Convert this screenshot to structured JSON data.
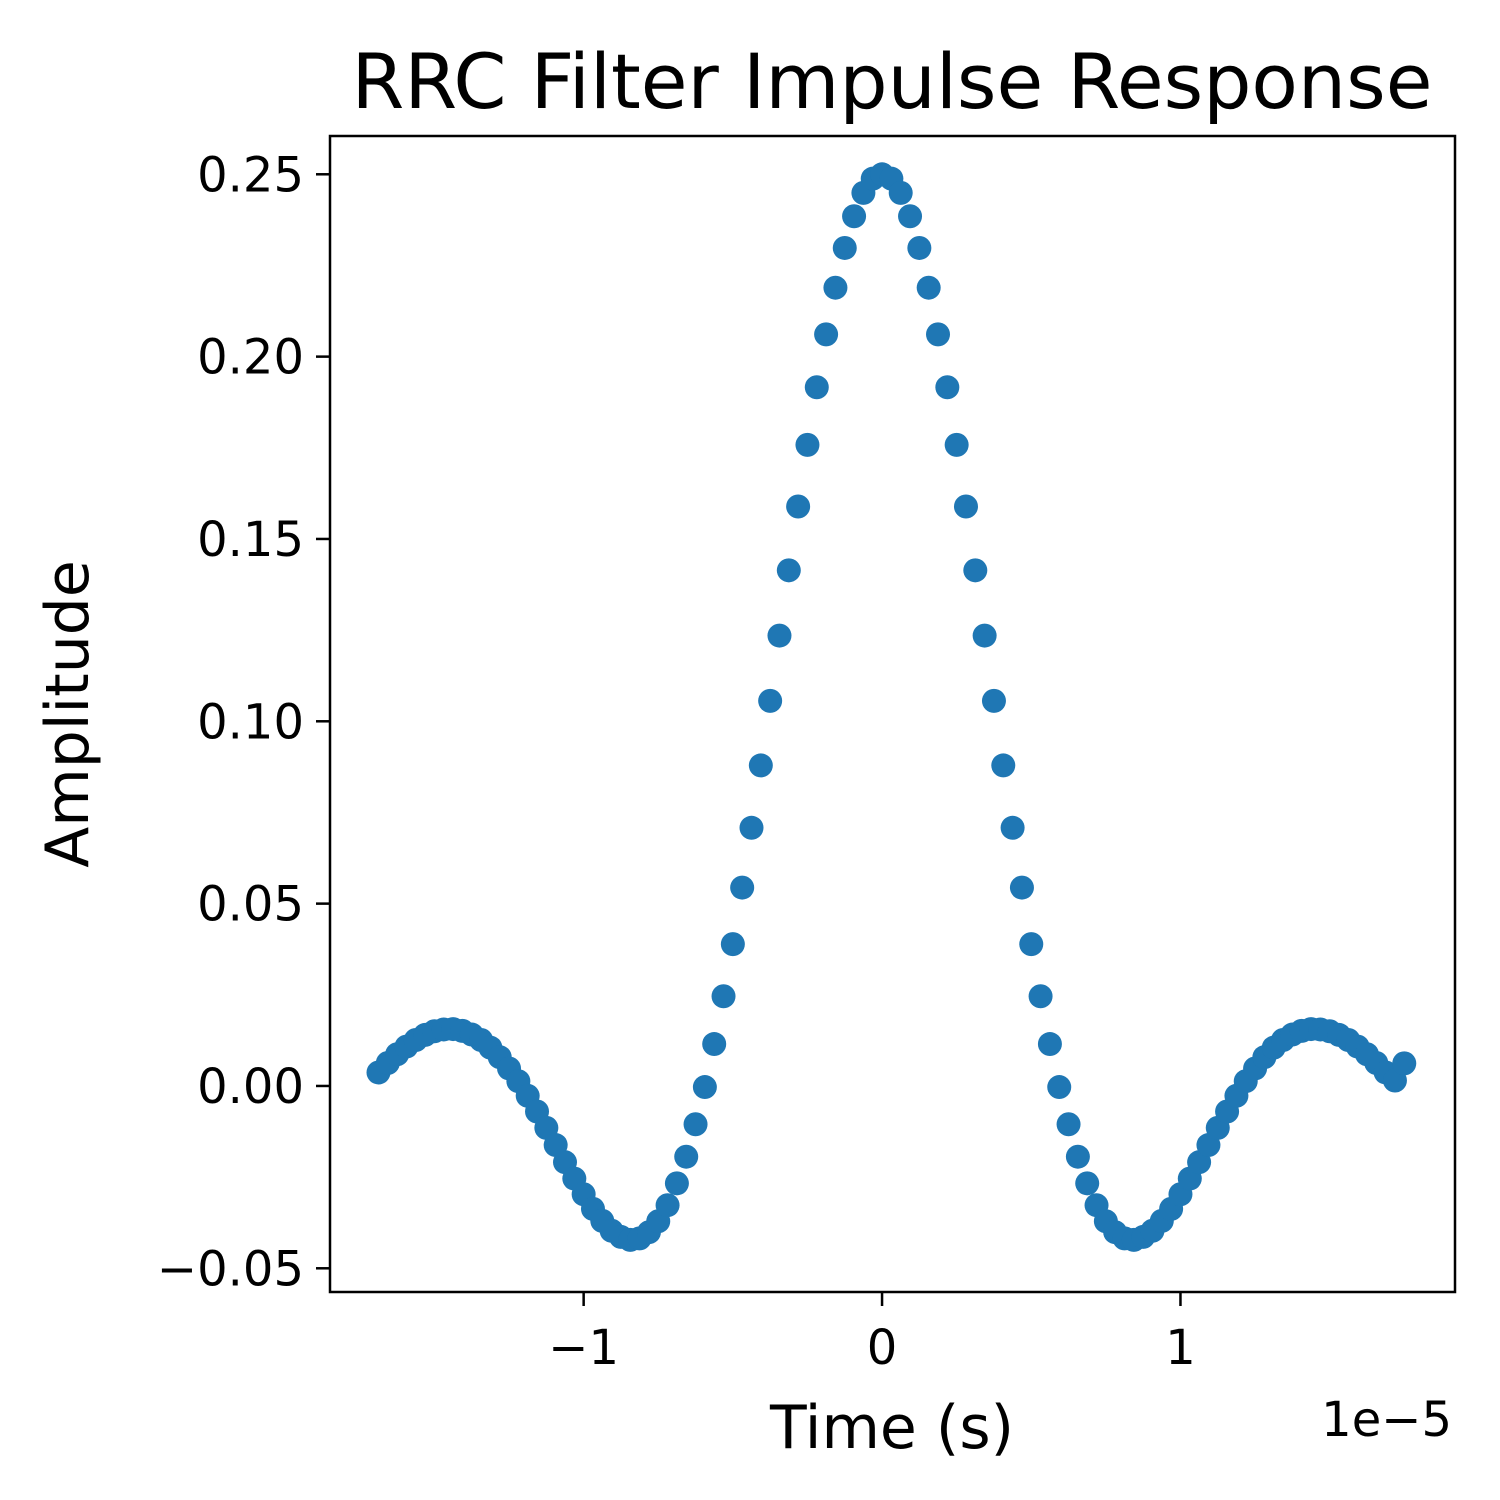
{
  "chart_data": {
    "type": "scatter",
    "title": "RRC Filter Impulse Response",
    "xlabel": "Time (s)",
    "ylabel": "Amplitude",
    "x_offset_label": "1e−5",
    "xlim": [
      -1.85,
      1.92
    ],
    "ylim": [
      -0.0565,
      0.2605
    ],
    "xticks": [
      -1,
      0,
      1
    ],
    "xtick_labels": [
      "−1",
      "0",
      "1"
    ],
    "yticks": [
      -0.05,
      0.0,
      0.05,
      0.1,
      0.15,
      0.2,
      0.25
    ],
    "ytick_labels": [
      "−0.05",
      "0.00",
      "0.05",
      "0.10",
      "0.15",
      "0.20",
      "0.25"
    ],
    "grid": false,
    "legend": "none",
    "color": "#1f77b4",
    "series": [
      {
        "x": [
          -1.6875,
          -1.65625,
          -1.625,
          -1.59375,
          -1.5625,
          -1.53125,
          -1.5,
          -1.46875,
          -1.4375,
          -1.40625,
          -1.375,
          -1.34375,
          -1.3125,
          -1.28125,
          -1.25,
          -1.21875,
          -1.1875,
          -1.15625,
          -1.125,
          -1.09375,
          -1.0625,
          -1.03125,
          -1.0,
          -0.96875,
          -0.9375,
          -0.90625,
          -0.875,
          -0.84375,
          -0.8125,
          -0.78125,
          -0.75,
          -0.71875,
          -0.6875,
          -0.65625,
          -0.625,
          -0.59375,
          -0.5625,
          -0.53125,
          -0.5,
          -0.46875,
          -0.4375,
          -0.40625,
          -0.375,
          -0.34375,
          -0.3125,
          -0.28125,
          -0.25,
          -0.21875,
          -0.1875,
          -0.15625,
          -0.125,
          -0.09375,
          -0.0625,
          -0.03125,
          0.0,
          0.03125,
          0.0625,
          0.09375,
          0.125,
          0.15625,
          0.1875,
          0.21875,
          0.25,
          0.28125,
          0.3125,
          0.34375,
          0.375,
          0.40625,
          0.4375,
          0.46875,
          0.5,
          0.53125,
          0.5625,
          0.59375,
          0.625,
          0.65625,
          0.6875,
          0.71875,
          0.75,
          0.78125,
          0.8125,
          0.84375,
          0.875,
          0.90625,
          0.9375,
          0.96875,
          1.0,
          1.03125,
          1.0625,
          1.09375,
          1.125,
          1.15625,
          1.1875,
          1.21875,
          1.25,
          1.28125,
          1.3125,
          1.34375,
          1.375,
          1.40625,
          1.4375,
          1.46875,
          1.5,
          1.53125,
          1.5625,
          1.59375,
          1.625,
          1.65625,
          1.6875,
          1.71875,
          1.75
        ],
        "y": [
          0.0037,
          0.0063,
          0.0087,
          0.0108,
          0.0126,
          0.014,
          0.015,
          0.0155,
          0.0156,
          0.0151,
          0.0141,
          0.0126,
          0.0105,
          0.0079,
          0.0048,
          0.0013,
          -0.0027,
          -0.007,
          -0.0115,
          -0.0162,
          -0.0209,
          -0.0254,
          -0.0297,
          -0.0337,
          -0.037,
          -0.0397,
          -0.0414,
          -0.0422,
          -0.0418,
          -0.0401,
          -0.0371,
          -0.0327,
          -0.0267,
          -0.0194,
          -0.0105,
          -0.0003,
          0.0115,
          0.0246,
          0.0389,
          0.0544,
          0.0708,
          0.0879,
          0.1056,
          0.1235,
          0.1414,
          0.1589,
          0.1758,
          0.1916,
          0.2061,
          0.2189,
          0.2298,
          0.2385,
          0.2449,
          0.2488,
          0.25,
          0.2488,
          0.2449,
          0.2385,
          0.2298,
          0.2189,
          0.2061,
          0.1916,
          0.1758,
          0.1589,
          0.1414,
          0.1235,
          0.1056,
          0.0879,
          0.0708,
          0.0544,
          0.0389,
          0.0246,
          0.0115,
          -0.0003,
          -0.0105,
          -0.0194,
          -0.0267,
          -0.0327,
          -0.0371,
          -0.0401,
          -0.0418,
          -0.0422,
          -0.0414,
          -0.0397,
          -0.037,
          -0.0337,
          -0.0297,
          -0.0254,
          -0.0209,
          -0.0162,
          -0.0115,
          -0.007,
          -0.0027,
          0.0013,
          0.0048,
          0.0079,
          0.0105,
          0.0126,
          0.0141,
          0.0151,
          0.0156,
          0.0155,
          0.015,
          0.014,
          0.0126,
          0.0108,
          0.0087,
          0.0063,
          0.0037,
          0.0015,
          0.0062
        ]
      }
    ]
  }
}
